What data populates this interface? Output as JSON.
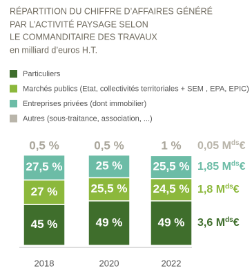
{
  "chart_data": {
    "type": "stacked_bar",
    "title": [
      "RÉPARTITION DU CHIFFRE D’AFFAIRES GÉNÉRÉ",
      "PAR L’ACTIVITÉ PAYSAGE SELON",
      "LE COMMANDITAIRE DES TRAVAUX"
    ],
    "subtitle": "en milliard d’euros H.T.",
    "categories": [
      "2018",
      "2020",
      "2022"
    ],
    "series": [
      {
        "name": "Particuliers",
        "color": "#3f6e2c",
        "values": [
          45,
          49,
          49
        ],
        "value_labels": [
          "45 %",
          "49 %",
          "49 %"
        ]
      },
      {
        "name": "Marchés publics (Etat, collectivités territoriales + SEM , EPA, EPIC)",
        "color": "#8cb83c",
        "values": [
          27,
          25.5,
          24.5
        ],
        "value_labels": [
          "27 %",
          "25,5 %",
          "24,5 %"
        ]
      },
      {
        "name": "Entreprises privées (dont immobilier)",
        "color": "#6cbca6",
        "values": [
          27.5,
          25,
          25.5
        ],
        "value_labels": [
          "27,5 %",
          "25 %",
          "25,5 %"
        ]
      },
      {
        "name": "Autres (sous-traitance, association, ...)",
        "color": "#b9b5aa",
        "values": [
          0.5,
          0.5,
          1
        ],
        "value_labels": [
          "0,5 %",
          "0,5 %",
          "1 %"
        ]
      }
    ],
    "annotations": [
      {
        "text": "3,6 M",
        "sup": "ds",
        "end": "€",
        "value": 3.6
      },
      {
        "text": "1,8 M",
        "sup": "ds",
        "end": "€",
        "value": 1.8
      },
      {
        "text": "1,85 M",
        "sup": "ds",
        "end": "€",
        "value": 1.85
      },
      {
        "text": "0,05 M",
        "sup": "ds",
        "end": "€",
        "value": 0.05
      }
    ]
  }
}
